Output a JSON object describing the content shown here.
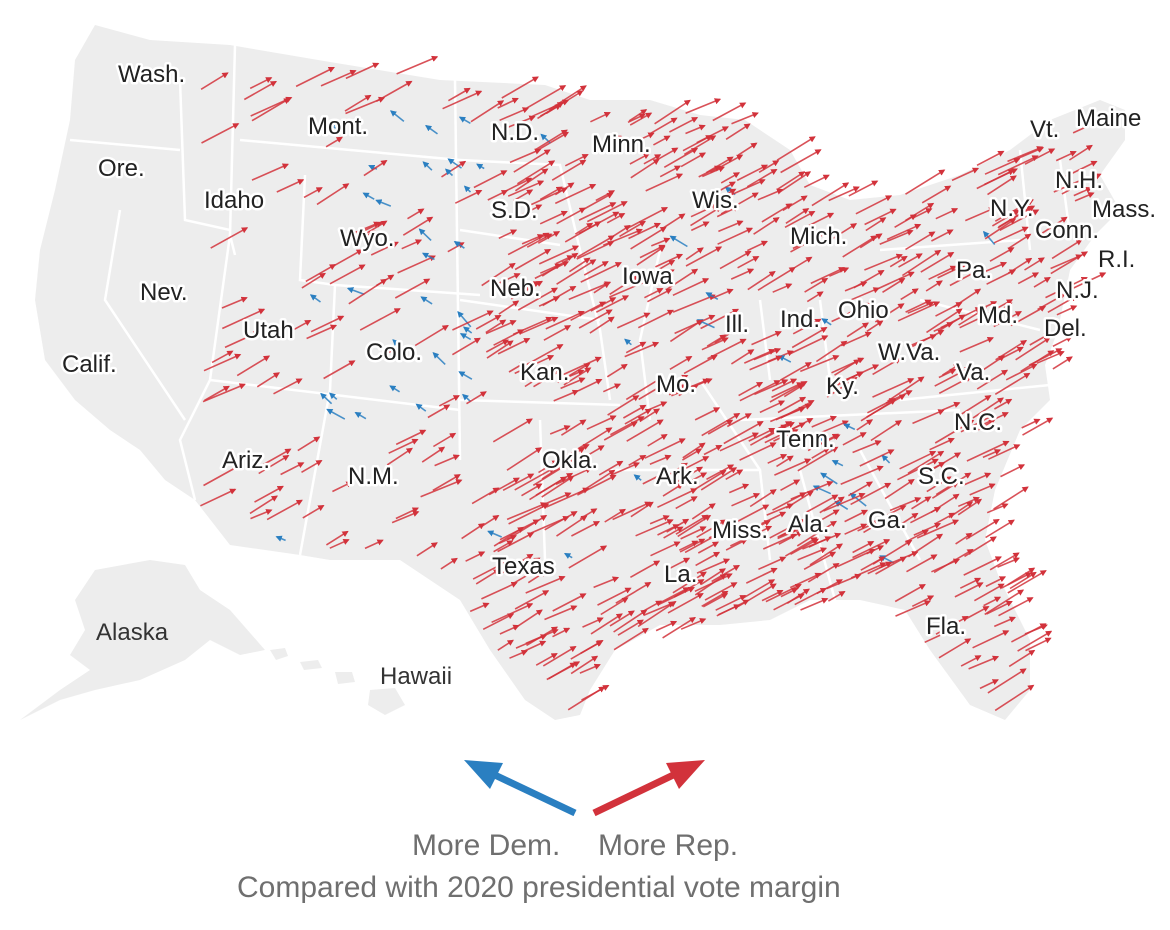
{
  "map": {
    "colors": {
      "land": "#ededed",
      "border": "#ffffff",
      "rep": "#d2323b",
      "dem": "#2a7fc1"
    },
    "state_labels": [
      "Wash.",
      "Ore.",
      "Calif.",
      "Idaho",
      "Nev.",
      "Mont.",
      "Wyo.",
      "Utah",
      "Ariz.",
      "Colo.",
      "N.M.",
      "N.D.",
      "S.D.",
      "Neb.",
      "Kan.",
      "Okla.",
      "Texas",
      "Minn.",
      "Iowa",
      "Mo.",
      "Ark.",
      "La.",
      "Wis.",
      "Ill.",
      "Mich.",
      "Ind.",
      "Ohio",
      "Ky.",
      "Tenn.",
      "Miss.",
      "Ala.",
      "Ga.",
      "Fla.",
      "S.C.",
      "N.C.",
      "Va.",
      "W.Va.",
      "Pa.",
      "N.Y.",
      "Vt.",
      "Maine",
      "N.H.",
      "Mass.",
      "Conn.",
      "R.I.",
      "N.J.",
      "Md.",
      "Del.",
      "Alaska",
      "Hawaii"
    ]
  },
  "legend": {
    "dem_label": "More Dem.",
    "rep_label": "More Rep.",
    "caption": "Compared with 2020 presidential vote margin"
  }
}
